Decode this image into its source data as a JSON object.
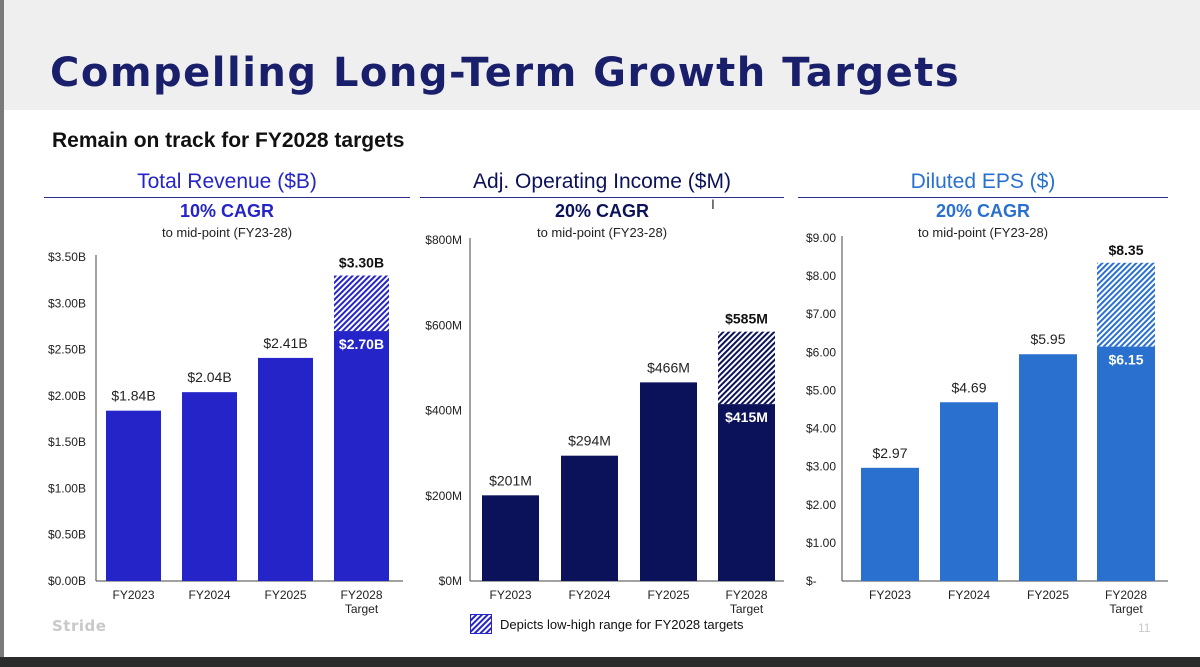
{
  "title": "Compelling Long-Term Growth Targets",
  "subtitle": "Remain on track for FY2028 targets",
  "footer": {
    "logo": "Stride",
    "page": "11"
  },
  "legend": {
    "label": "Depicts low-high range for FY2028 targets"
  },
  "colors": {
    "revenue": "#2424c8",
    "operating_income": "#0c1259",
    "eps": "#2a70cf",
    "title": "#1a1f6b",
    "hatch": "#ffffff"
  },
  "chart_data": [
    {
      "type": "bar",
      "title": "Total Revenue ($B)",
      "cagr": "10% CAGR",
      "note": "to mid-point (FY23-28)",
      "categories": [
        "FY2023",
        "FY2024",
        "FY2025",
        "FY2028\nTarget"
      ],
      "values": [
        1.84,
        2.04,
        2.41,
        2.7
      ],
      "labels": [
        "$1.84B",
        "$2.04B",
        "$2.41B",
        "$2.70B"
      ],
      "range_high": 3.3,
      "range_high_label": "$3.30B",
      "ylim": [
        0,
        3.5
      ],
      "ticks": [
        0,
        0.5,
        1.0,
        1.5,
        2.0,
        2.5,
        3.0,
        3.5
      ],
      "tick_labels": [
        "$0.00B",
        "$0.50B",
        "$1.00B",
        "$1.50B",
        "$2.00B",
        "$2.50B",
        "$3.00B",
        "$3.50B"
      ]
    },
    {
      "type": "bar",
      "title": "Adj. Operating Income ($M)",
      "cagr": "20% CAGR",
      "note": "to mid-point (FY23-28)",
      "categories": [
        "FY2023",
        "FY2024",
        "FY2025",
        "FY2028\nTarget"
      ],
      "values": [
        201,
        294,
        466,
        415
      ],
      "labels": [
        "$201M",
        "$294M",
        "$466M",
        "$415M"
      ],
      "range_high": 585,
      "range_high_label": "$585M",
      "ylim": [
        0,
        800
      ],
      "ticks": [
        0,
        200,
        400,
        600,
        800
      ],
      "tick_labels": [
        "$0M",
        "$200M",
        "$400M",
        "$600M",
        "$800M"
      ]
    },
    {
      "type": "bar",
      "title": "Diluted EPS ($)",
      "cagr": "20% CAGR",
      "note": "to mid-point (FY23-28)",
      "categories": [
        "FY2023",
        "FY2024",
        "FY2025",
        "FY2028\nTarget"
      ],
      "values": [
        2.97,
        4.69,
        5.95,
        6.15
      ],
      "labels": [
        "$2.97",
        "$4.69",
        "$5.95",
        "$6.15"
      ],
      "range_high": 8.35,
      "range_high_label": "$8.35",
      "ylim": [
        0,
        9
      ],
      "ticks": [
        0,
        1,
        2,
        3,
        4,
        5,
        6,
        7,
        8,
        9
      ],
      "tick_labels": [
        "$-",
        "$1.00",
        "$2.00",
        "$3.00",
        "$4.00",
        "$5.00",
        "$6.00",
        "$7.00",
        "$8.00",
        "$9.00"
      ]
    }
  ]
}
